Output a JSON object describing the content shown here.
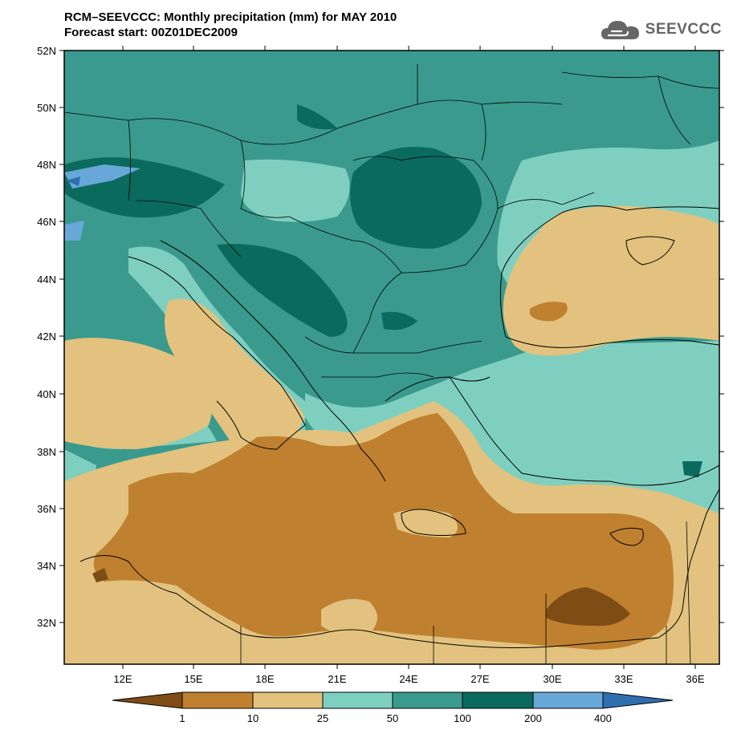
{
  "header": {
    "title_line1": "RCM–SEEVCCC: Monthly precipitation (mm) for MAY 2010",
    "title_line2": "Forecast start: 00Z01DEC2009"
  },
  "logo": {
    "text": "SEEVCCC",
    "icon": "cloud-icon"
  },
  "map": {
    "lat_labels": [
      "52N",
      "50N",
      "48N",
      "46N",
      "44N",
      "42N",
      "40N",
      "38N",
      "36N",
      "34N",
      "32N"
    ],
    "lon_labels": [
      "12E",
      "15E",
      "18E",
      "21E",
      "24E",
      "27E",
      "30E",
      "33E",
      "36E"
    ]
  },
  "legend": {
    "thresholds": [
      "1",
      "10",
      "25",
      "50",
      "100",
      "200",
      "400"
    ],
    "colors": [
      "#7e4c15",
      "#bf8030",
      "#e2c27e",
      "#7fcfc0",
      "#3a9a8d",
      "#0b6a5e",
      "#68a8d8",
      "#2f6fb0"
    ]
  }
}
